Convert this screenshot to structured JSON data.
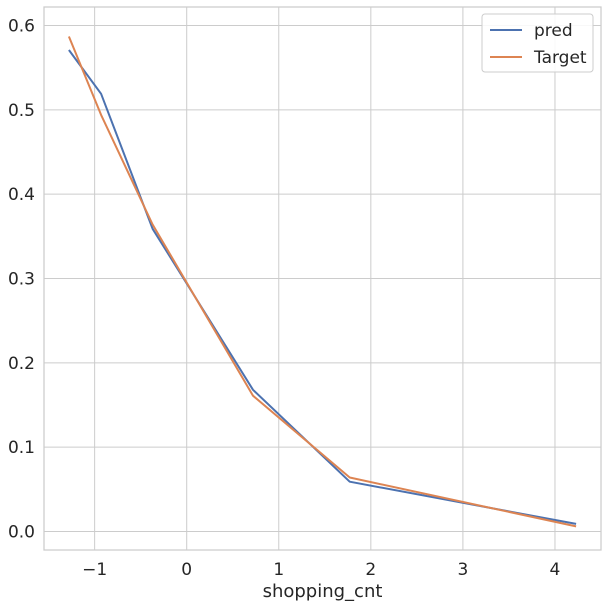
{
  "chart_data": {
    "type": "line",
    "title": "",
    "xlabel": "shopping_cnt",
    "ylabel": "",
    "xlim": [
      -1.55,
      4.5
    ],
    "ylim": [
      -0.022,
      0.622
    ],
    "x_ticks": [
      -1,
      0,
      1,
      2,
      3,
      4
    ],
    "x_tick_labels": [
      "−1",
      "0",
      "1",
      "2",
      "3",
      "4"
    ],
    "y_ticks": [
      0.0,
      0.1,
      0.2,
      0.3,
      0.4,
      0.5,
      0.6
    ],
    "y_tick_labels": [
      "0.0",
      "0.1",
      "0.2",
      "0.3",
      "0.4",
      "0.5",
      "0.6"
    ],
    "grid": true,
    "legend": "top-right",
    "series": [
      {
        "name": "pred",
        "color": "#4c72b0",
        "x": [
          -1.28,
          -0.93,
          -0.37,
          0.72,
          1.77,
          4.23
        ],
        "y": [
          0.571,
          0.519,
          0.359,
          0.168,
          0.059,
          0.009
        ]
      },
      {
        "name": "Target",
        "color": "#dd8452",
        "x": [
          -1.28,
          -0.93,
          -0.37,
          0.72,
          1.77,
          4.23
        ],
        "y": [
          0.587,
          0.494,
          0.364,
          0.161,
          0.064,
          0.006
        ]
      }
    ]
  }
}
